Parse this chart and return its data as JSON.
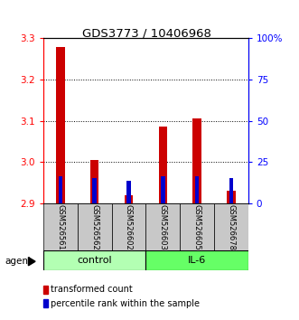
{
  "title": "GDS3773 / 10406968",
  "samples": [
    "GSM526561",
    "GSM526562",
    "GSM526602",
    "GSM526603",
    "GSM526605",
    "GSM526678"
  ],
  "red_values": [
    3.28,
    3.005,
    2.92,
    3.085,
    3.105,
    2.93
  ],
  "blue_values": [
    2.965,
    2.96,
    2.955,
    2.965,
    2.965,
    2.96
  ],
  "y_min": 2.9,
  "y_max": 3.3,
  "y_ticks": [
    2.9,
    3.0,
    3.1,
    3.2,
    3.3
  ],
  "y2_ticks": [
    0,
    25,
    50,
    75,
    100
  ],
  "y2_labels": [
    "0",
    "25",
    "50",
    "75",
    "100%"
  ],
  "groups": [
    {
      "label": "control",
      "indices": [
        0,
        1,
        2
      ],
      "color": "#b3ffb3"
    },
    {
      "label": "IL-6",
      "indices": [
        3,
        4,
        5
      ],
      "color": "#66ff66"
    }
  ],
  "red_bar_width": 0.25,
  "blue_bar_width": 0.12,
  "red_color": "#cc0000",
  "blue_color": "#0000cc",
  "agent_label": "agent",
  "legend_red": "transformed count",
  "legend_blue": "percentile rank within the sample",
  "grid_yticks": [
    3.0,
    3.1,
    3.2
  ]
}
